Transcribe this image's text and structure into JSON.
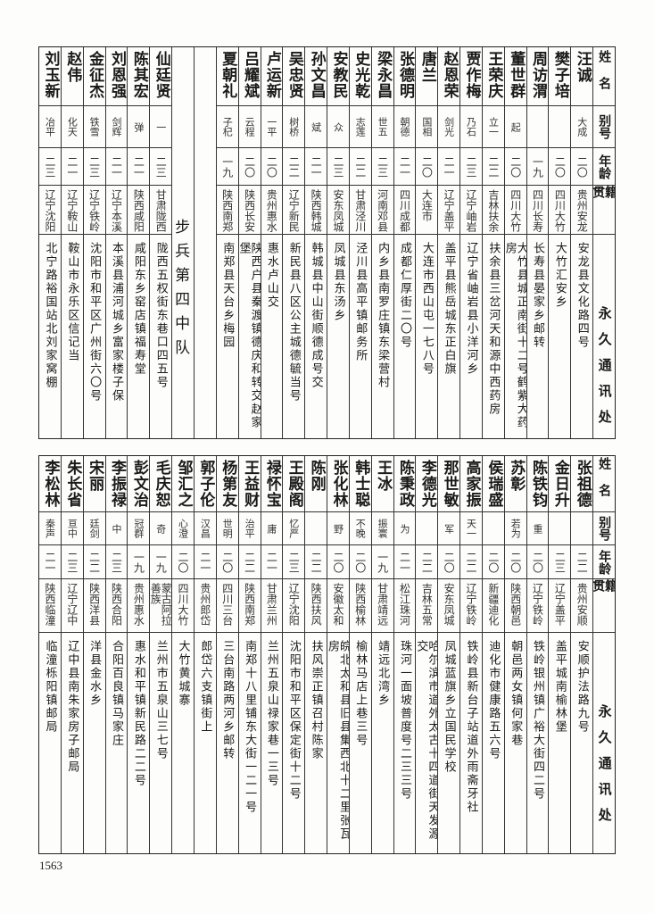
{
  "headers": {
    "name": "姓名",
    "alias": "别号",
    "age": "年龄",
    "native": "籍贯",
    "address": "永久通讯处"
  },
  "top_table": {
    "members_a": [
      {
        "name": "汪诚",
        "alias": "大成",
        "age": "二〇",
        "native": "贵州安龙",
        "address": "安龙县文化路四号"
      },
      {
        "name": "樊子培",
        "alias": "",
        "age": "二〇",
        "native": "四川大竹",
        "address": "大竹汇安乡"
      },
      {
        "name": "周访渭",
        "alias": "",
        "age": "一九",
        "native": "四川长寿",
        "address": "长寿县晏家乡邮转"
      },
      {
        "name": "董世群",
        "alias": "起",
        "age": "二〇",
        "native": "四川大竹",
        "address": "大竹县城正南街十二号鹤紫大药房"
      },
      {
        "name": "王荣庆",
        "alias": "立一",
        "age": "二二",
        "native": "吉林扶余",
        "address": "扶余县三岔河天和源中西药房"
      },
      {
        "name": "贾作梅",
        "alias": "乃石",
        "age": "二三",
        "native": "辽宁岫岩",
        "address": "辽宁省岫岩县小洋河乡"
      },
      {
        "name": "赵恩荣",
        "alias": "剑光",
        "age": "二一",
        "native": "辽宁盖平",
        "address": "盖平县熊岳城东正白旗"
      },
      {
        "name": "唐兰",
        "alias": "国相",
        "age": "二〇",
        "native": "大连市",
        "address": "大连市西山屯一七八号"
      },
      {
        "name": "张德明",
        "alias": "朝德",
        "age": "二一",
        "native": "四川成都",
        "address": "成都仁厚街二〇号"
      },
      {
        "name": "梁永昌",
        "alias": "世五",
        "age": "二三",
        "native": "河南邓县",
        "address": "内乡县南罗庄镇东梁营村"
      },
      {
        "name": "史光乾",
        "alias": "志莲",
        "age": "二二",
        "native": "甘肃泾川",
        "address": "泾川县高平镇邮务所"
      },
      {
        "name": "安教民",
        "alias": "众",
        "age": "二三",
        "native": "安东凤城",
        "address": "凤城县东汤乡"
      },
      {
        "name": "孙文昌",
        "alias": "斌",
        "age": "二一",
        "native": "陕西韩城",
        "address": "韩城县中山街顺德成号交"
      },
      {
        "name": "吴忠贤",
        "alias": "树桥",
        "age": "二二",
        "native": "辽宁新民",
        "address": "新民县八区公主城德毓当号"
      },
      {
        "name": "卢运新",
        "alias": "一平",
        "age": "二〇",
        "native": "贵州惠水",
        "address": "惠水卢山交"
      },
      {
        "name": "吕耀斌",
        "alias": "云程",
        "age": "二〇",
        "native": "陕西长安",
        "address": "陕西户县秦渡镇德庆和转交赵家堡"
      },
      {
        "name": "夏朝礼",
        "alias": "子杞",
        "age": "一九",
        "native": "陕西南郑",
        "address": "南郑县天台乡梅园"
      }
    ],
    "section_label": "步兵第四中队",
    "members_b": [
      {
        "name": "仙廷贤",
        "alias": "一",
        "age": "二三",
        "native": "甘肃陇西",
        "address": "陇西五权街东巷口四五号"
      },
      {
        "name": "陈其宏",
        "alias": "弹",
        "age": "二一",
        "native": "陕西咸阳",
        "address": "咸阳东乡窑店镇福寿堂"
      },
      {
        "name": "刘恩强",
        "alias": "剑辉",
        "age": "二一",
        "native": "辽宁本溪",
        "address": "本溪县浦河城乡富家楼子保"
      },
      {
        "name": "金征杰",
        "alias": "铁雪",
        "age": "二三",
        "native": "辽宁铁岭",
        "address": "沈阳市和平区广州街六〇号"
      },
      {
        "name": "赵伟",
        "alias": "化天",
        "age": "二一",
        "native": "辽宁鞍山",
        "address": "鞍山市永乐区信记当"
      },
      {
        "name": "刘玉新",
        "alias": "冶平",
        "age": "二三",
        "native": "辽宁沈阳",
        "address": "北宁路裕国站北刘家窝棚"
      }
    ]
  },
  "bottom_table": {
    "members": [
      {
        "name": "张祖德",
        "alias": "",
        "age": "二二",
        "native": "贵州安顺",
        "address": "安顺护法路九号"
      },
      {
        "name": "金日升",
        "alias": "",
        "age": "二三",
        "native": "辽宁盖平",
        "address": "盖平城南榆林堡"
      },
      {
        "name": "陈铁钧",
        "alias": "重",
        "age": "二〇",
        "native": "辽宁铁岭",
        "address": "铁岭银州镇广裕大街四二号"
      },
      {
        "name": "苏彰",
        "alias": "若为",
        "age": "二〇",
        "native": "陕西朝邑",
        "address": "朝邑两女镇何家巷"
      },
      {
        "name": "侯瑞盛",
        "alias": "",
        "age": "二〇",
        "native": "新疆迪化",
        "address": "迪化市健康路五六号"
      },
      {
        "name": "高家振",
        "alias": "天一",
        "age": "二二",
        "native": "辽宁铁岭",
        "address": "铁岭县新台子站道外雨斋牙社"
      },
      {
        "name": "那世敏",
        "alias": "军",
        "age": "二〇",
        "native": "安东凤城",
        "address": "凤城蓝旗乡立国民学校"
      },
      {
        "name": "李德光",
        "alias": "",
        "age": "二二",
        "native": "吉林五常",
        "address": "哈尔滨市道外太古十四道街天发源交"
      },
      {
        "name": "陈秉政",
        "alias": "为",
        "age": "二一",
        "native": "松江珠河",
        "address": "珠河一面坡普度号二三三号"
      },
      {
        "name": "王冰",
        "alias": "振寰",
        "age": "一九",
        "native": "甘肃靖远",
        "address": "靖远北湾乡"
      },
      {
        "name": "韩士聪",
        "alias": "不晚",
        "age": "二〇",
        "native": "陕西榆林",
        "address": "榆林马店上巷三号"
      },
      {
        "name": "张化林",
        "alias": "野",
        "age": "二〇",
        "native": "安徽太和",
        "address": "皖北太和县旧县集西北十二里张瓦房"
      },
      {
        "name": "陈刚",
        "alias": "",
        "age": "二二",
        "native": "陕西扶风",
        "address": "扶风崇正镇召村陈家"
      },
      {
        "name": "王殿阁",
        "alias": "忆严",
        "age": "二三",
        "native": "辽宁沈阳",
        "address": "沈阳市和平区保定街十二号"
      },
      {
        "name": "禄怀宝",
        "alias": "庸",
        "age": "二一",
        "native": "甘肃兰州",
        "address": "兰州五泉山禄家巷一三号"
      },
      {
        "name": "王益财",
        "alias": "治平",
        "age": "二二",
        "native": "陕西南郑",
        "address": "南郑十八里铺东大街一二一号"
      },
      {
        "name": "杨第友",
        "alias": "世明",
        "age": "二〇",
        "native": "四川三台",
        "address": "三台南路两河乡邮转"
      },
      {
        "name": "郭子伦",
        "alias": "汉昌",
        "age": "二一",
        "native": "贵州郎岱",
        "address": "郎岱六支镇街上"
      },
      {
        "name": "邹汇之",
        "alias": "心澄",
        "age": "二〇",
        "native": "四川大竹",
        "address": "大竹黄城寨"
      },
      {
        "name": "毛庆恕",
        "alias": "奇",
        "age": "一九",
        "native": "蒙古阿拉善族",
        "address": "兰州市五泉山三七号"
      },
      {
        "name": "彭文治",
        "alias": "冠群",
        "age": "一九",
        "native": "贵州惠水",
        "address": "惠水和平镇新民路二二号"
      },
      {
        "name": "李振禄",
        "alias": "中",
        "age": "二三",
        "native": "陕西合阳",
        "address": "合阳百良镇马家庄"
      },
      {
        "name": "宋丽",
        "alias": "廷剑",
        "age": "二二",
        "native": "陕西洋县",
        "address": "洋县金水乡"
      },
      {
        "name": "朱长省",
        "alias": "亘中",
        "age": "二三",
        "native": "辽宁辽中",
        "address": "辽中县南朱家房子邮局"
      },
      {
        "name": "李松林",
        "alias": "秦声",
        "age": "二一",
        "native": "陕西临潼",
        "address": "临潼栎阳镇邮局"
      }
    ]
  },
  "page_number": "1563"
}
